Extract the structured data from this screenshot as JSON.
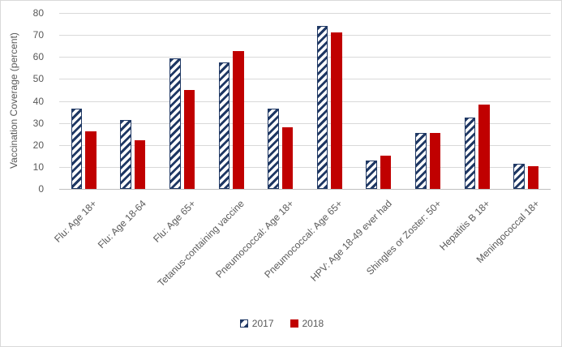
{
  "chart_data": {
    "type": "bar",
    "title": "",
    "ylabel": "Vaccination Coverage (percent)",
    "xlabel": "",
    "ylim": [
      0,
      80
    ],
    "yticks": [
      0,
      10,
      20,
      30,
      40,
      50,
      60,
      70,
      80
    ],
    "grid": true,
    "legend_position": "bottom",
    "categories": [
      "Flu: Age 18+",
      "Flu: Age 18-64",
      "Flu: Age 65+",
      "Tetanus-containing vaccine",
      "Pneumococcal: Age 18+",
      "Pneumococcal: Age 65+",
      "HPV: Age 18-49 ever had",
      "Shingles or Zoster: 50+",
      "Hepatitis B 18+",
      "Meningococcal 18+"
    ],
    "series": [
      {
        "name": "2017",
        "style": "hatched",
        "color": "#1f3864",
        "values": [
          36.5,
          31.5,
          59.5,
          57.5,
          36.5,
          74,
          13,
          25.5,
          32.5,
          11.5
        ]
      },
      {
        "name": "2018",
        "style": "solid",
        "color": "#c00000",
        "values": [
          26,
          22,
          45,
          62.5,
          28,
          71,
          15,
          25.5,
          38.5,
          10.5
        ]
      }
    ]
  },
  "colors": {
    "series_2017": "#1f3864",
    "series_2018": "#c00000",
    "gridline": "#d9d9d9",
    "axis_line": "#bfbfbf",
    "text": "#595959",
    "frame_border": "#d9d9d9",
    "background": "#ffffff"
  }
}
